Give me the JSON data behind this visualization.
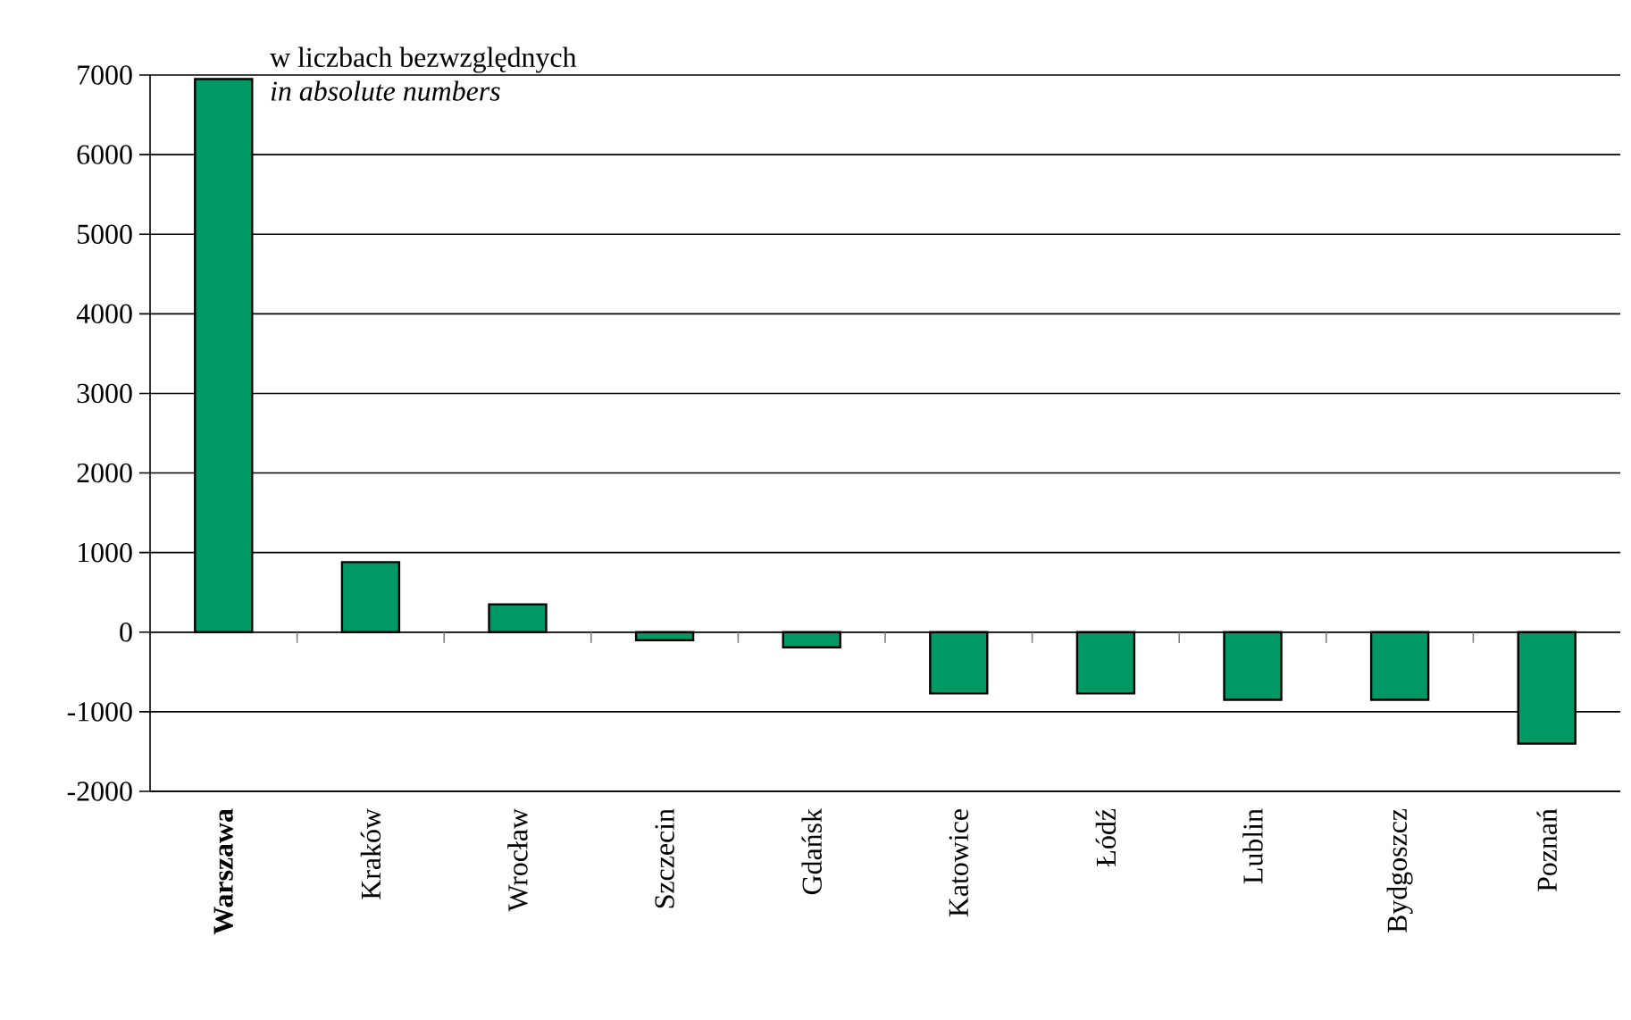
{
  "chart_data": {
    "type": "bar",
    "title": "w liczbach bezwzględnych",
    "subtitle": "in absolute numbers",
    "categories": [
      "**Warszawa**",
      "Kraków",
      "Wrocław",
      "Szczecin",
      "Gdańsk",
      "Katowice",
      "Łódź",
      "Lublin",
      "Bydgoszcz",
      "Poznań"
    ],
    "values": [
      6950,
      880,
      350,
      -100,
      -190,
      -770,
      -770,
      -850,
      -850,
      -1400
    ],
    "color": "#009966",
    "ylim": [
      -2000,
      7000
    ],
    "yticks": [
      -2000,
      -1000,
      0,
      1000,
      2000,
      3000,
      4000,
      5000,
      6000,
      7000
    ],
    "grid": "y"
  }
}
